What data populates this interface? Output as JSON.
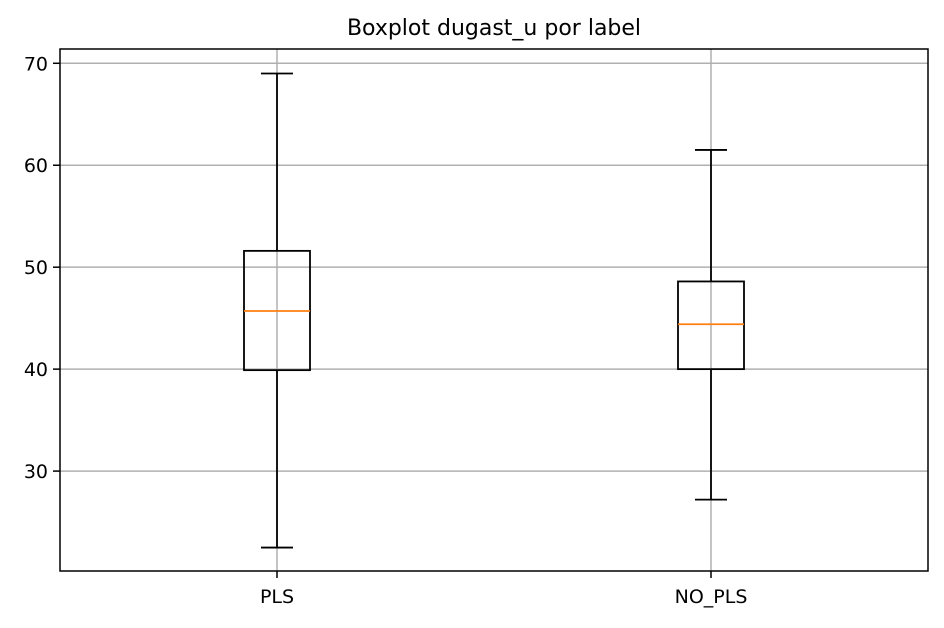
{
  "chart_data": {
    "type": "boxplot",
    "title": "Boxplot dugast_u por label",
    "xlabel": "",
    "ylabel": "",
    "categories": [
      "PLS",
      "NO_PLS"
    ],
    "boxes": [
      {
        "category": "PLS",
        "whisker_low": 22.5,
        "q1": 39.9,
        "median": 45.7,
        "q3": 51.6,
        "whisker_high": 69.0
      },
      {
        "category": "NO_PLS",
        "whisker_low": 27.2,
        "q1": 40.0,
        "median": 44.4,
        "q3": 48.6,
        "whisker_high": 61.5
      }
    ],
    "ylim": [
      20.2,
      71.4
    ],
    "yticks": [
      30,
      40,
      50,
      60,
      70
    ],
    "grid": true,
    "colors": {
      "box": "#000000",
      "median": "#ff7f0e",
      "grid": "#b0b0b0"
    }
  }
}
